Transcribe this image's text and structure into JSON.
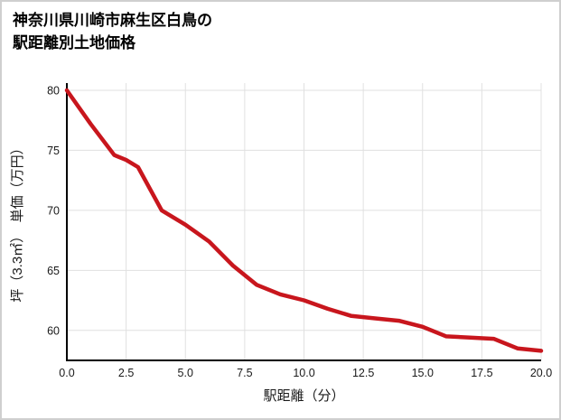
{
  "title": {
    "line1": "神奈川県川崎市麻生区白鳥の",
    "line2": "駅距離別土地価格"
  },
  "chart_data": {
    "type": "line",
    "title": "神奈川県川崎市麻生区白鳥の駅距離別土地価格",
    "xlabel": "駅距離（分）",
    "ylabel": "坪（3.3㎡）　単価（万円）",
    "x": [
      0,
      1,
      2,
      2.5,
      3,
      4,
      5,
      6,
      7,
      8,
      9,
      10,
      11,
      12,
      13,
      14,
      15,
      16,
      17,
      18,
      19,
      20
    ],
    "y": [
      80,
      77.2,
      74.6,
      74.2,
      73.6,
      70.0,
      68.8,
      67.4,
      65.4,
      63.8,
      63.0,
      62.5,
      61.8,
      61.2,
      61.0,
      60.8,
      60.3,
      59.5,
      59.4,
      59.3,
      58.5,
      58.3
    ],
    "xlim": [
      0,
      20
    ],
    "ylim": [
      57.5,
      80.6
    ],
    "x_ticks": [
      0,
      2.5,
      5,
      7.5,
      10,
      12.5,
      15,
      17.5,
      20
    ],
    "x_tick_labels": [
      "0.0",
      "2.5",
      "5.0",
      "7.5",
      "10.0",
      "12.5",
      "15.0",
      "17.5",
      "20.0"
    ],
    "y_ticks": [
      60,
      65,
      70,
      75,
      80
    ],
    "y_tick_labels": [
      "60",
      "65",
      "70",
      "75",
      "80"
    ],
    "grid": true,
    "legend_position": "none",
    "line_color": "#c8161d",
    "line_width": 4.5,
    "grid_color": "#e0e0e0",
    "axis_color": "#000000",
    "tick_label_color": "#1a1a1a"
  }
}
